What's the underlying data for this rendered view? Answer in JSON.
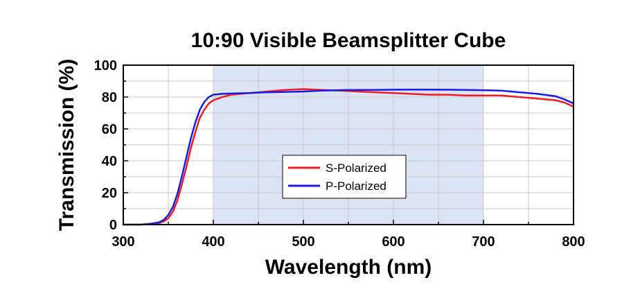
{
  "chart_data": {
    "type": "line",
    "title": "10:90 Visible Beamsplitter Cube",
    "xlabel": "Wavelength (nm)",
    "ylabel": "Transmission (%)",
    "xlim": [
      300,
      800
    ],
    "ylim": [
      0,
      100
    ],
    "x_ticks": [
      300,
      400,
      500,
      600,
      700,
      800
    ],
    "y_ticks": [
      0,
      20,
      40,
      60,
      80,
      100
    ],
    "grid": true,
    "legend_position": "center",
    "highlight_band": {
      "x_start": 400,
      "x_end": 700,
      "color": "#dbe4f5"
    },
    "series": [
      {
        "name": "S-Polarized",
        "color": "#ee1c25",
        "x": [
          300,
          320,
          330,
          340,
          345,
          350,
          355,
          360,
          365,
          370,
          375,
          380,
          385,
          390,
          395,
          400,
          410,
          420,
          440,
          460,
          480,
          500,
          520,
          540,
          560,
          580,
          600,
          620,
          640,
          660,
          680,
          700,
          720,
          740,
          760,
          780,
          790,
          800
        ],
        "y": [
          0,
          0,
          0.5,
          1,
          2,
          4,
          8,
          15,
          25,
          36,
          48,
          58,
          67,
          72,
          76,
          78,
          80,
          81.5,
          82.5,
          83.5,
          84.5,
          85,
          84.5,
          84,
          83.5,
          83,
          82.5,
          82,
          81.5,
          81.5,
          81,
          81,
          81,
          80,
          79,
          78,
          76.5,
          74
        ]
      },
      {
        "name": "P-Polarized",
        "color": "#1a1ae6",
        "x": [
          300,
          320,
          330,
          340,
          345,
          350,
          355,
          360,
          365,
          370,
          375,
          380,
          385,
          390,
          395,
          400,
          410,
          420,
          440,
          460,
          480,
          500,
          520,
          540,
          560,
          580,
          600,
          620,
          640,
          660,
          680,
          700,
          720,
          740,
          760,
          780,
          790,
          800
        ],
        "y": [
          0,
          0,
          0.5,
          1.5,
          3,
          6,
          11,
          19,
          30,
          42,
          54,
          64,
          72,
          77,
          80,
          81.5,
          82,
          82.2,
          82.5,
          83,
          83.2,
          83.5,
          84,
          84.3,
          84.5,
          84.5,
          84.6,
          84.7,
          84.7,
          84.6,
          84.5,
          84.3,
          84,
          83,
          82,
          80.5,
          78.5,
          76
        ]
      }
    ]
  }
}
